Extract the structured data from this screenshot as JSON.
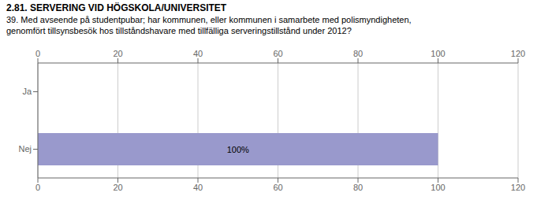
{
  "chart_data": {
    "type": "bar",
    "title": "2.81. SERVERING VID HÖGSKOLA/UNIVERSITET",
    "subtitle": "39. Med avseende på studentpubar; har kommunen, eller kommunen i samarbete med polismyndigheten,\ngenomfört tillsynsbesök hos tillståndshavare med tillfälliga serveringstillstånd under 2012?",
    "orientation": "horizontal",
    "categories": [
      "Nej",
      "Ja"
    ],
    "values": [
      100,
      0
    ],
    "value_labels": [
      "100%",
      null
    ],
    "data_labels": true,
    "color": "#9999cc",
    "xlim": [
      0,
      120
    ],
    "xticks": [
      0,
      20,
      40,
      60,
      80,
      100,
      120
    ],
    "grid": true
  }
}
